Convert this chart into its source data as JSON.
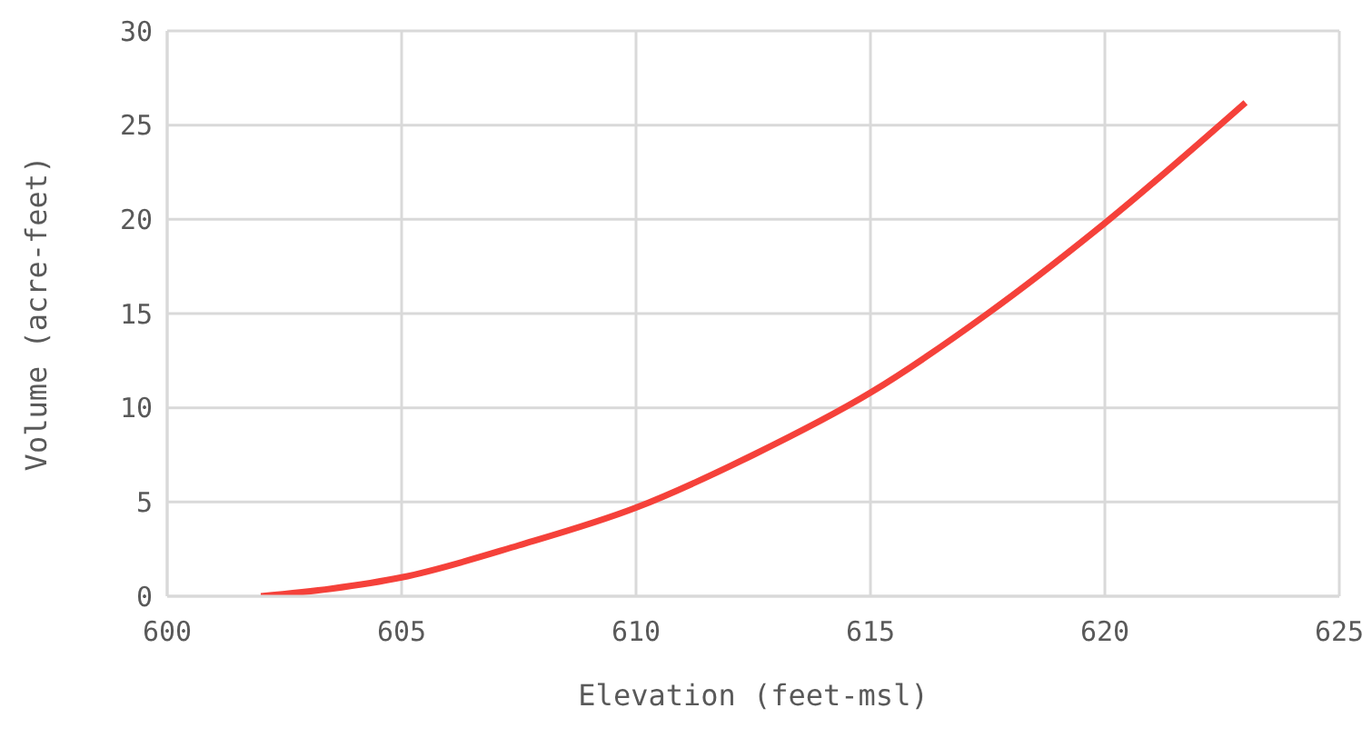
{
  "chart_data": {
    "type": "line",
    "xlabel": "Elevation (feet-msl)",
    "ylabel": "Volume (acre-feet)",
    "x": [
      602,
      603.5,
      605,
      607.5,
      610,
      612.5,
      615,
      617.5,
      620,
      623
    ],
    "series": [
      {
        "color": "#f5413a",
        "values": [
          0,
          0.4,
          1.0,
          2.7,
          4.7,
          7.5,
          10.8,
          15.0,
          19.8,
          26.2
        ]
      }
    ],
    "xlim": [
      600,
      625
    ],
    "xticks": [
      600,
      605,
      610,
      615,
      620,
      625
    ],
    "ylim": [
      0,
      30
    ],
    "yticks": [
      0,
      5,
      10,
      15,
      20,
      25,
      30
    ],
    "grid": true,
    "legend": false,
    "marker": "none",
    "line_style": "solid"
  }
}
